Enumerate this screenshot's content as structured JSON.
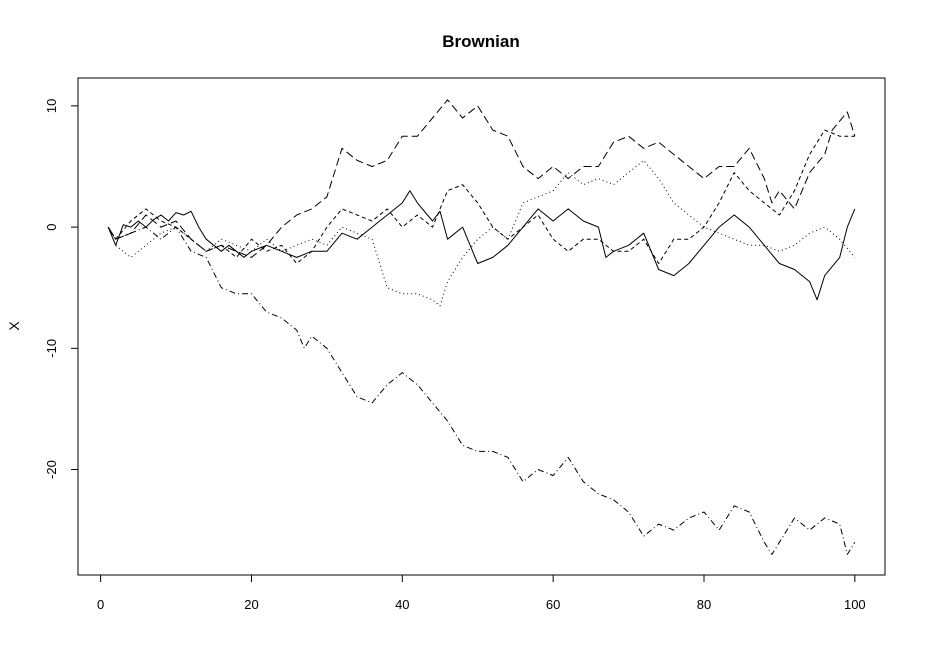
{
  "chart_data": {
    "type": "line",
    "title": "Brownian",
    "xlabel": "",
    "ylabel": "X",
    "xlim": [
      -3,
      104
    ],
    "ylim": [
      -28.7,
      12.3
    ],
    "xticks": [
      0,
      20,
      40,
      60,
      80,
      100
    ],
    "yticks": [
      10,
      0,
      -10,
      -20
    ],
    "grid": false,
    "legend": "none",
    "line_color": "#000000",
    "series": [
      {
        "style": "solid",
        "points": [
          [
            1,
            0
          ],
          [
            2,
            -1.5
          ],
          [
            3,
            0.2
          ],
          [
            4,
            0
          ],
          [
            5,
            0.5
          ],
          [
            6,
            0
          ],
          [
            7,
            0.6
          ],
          [
            8,
            1
          ],
          [
            9,
            0.5
          ],
          [
            10,
            1.2
          ],
          [
            11,
            1
          ],
          [
            12,
            1.3
          ],
          [
            13,
            0
          ],
          [
            14,
            -1
          ],
          [
            15,
            -1.5
          ],
          [
            16,
            -2
          ],
          [
            17,
            -1.5
          ],
          [
            18,
            -2
          ],
          [
            19,
            -2.5
          ],
          [
            20,
            -2
          ],
          [
            22,
            -1.5
          ],
          [
            24,
            -2
          ],
          [
            26,
            -2.5
          ],
          [
            28,
            -2
          ],
          [
            30,
            -2
          ],
          [
            32,
            -0.5
          ],
          [
            34,
            -1
          ],
          [
            36,
            0
          ],
          [
            38,
            1
          ],
          [
            40,
            2
          ],
          [
            41,
            3
          ],
          [
            42,
            2
          ],
          [
            44,
            0.5
          ],
          [
            45,
            1.3
          ],
          [
            46,
            -1
          ],
          [
            48,
            0
          ],
          [
            50,
            -3
          ],
          [
            52,
            -2.5
          ],
          [
            54,
            -1.5
          ],
          [
            56,
            0
          ],
          [
            58,
            1.5
          ],
          [
            60,
            0.5
          ],
          [
            62,
            1.5
          ],
          [
            64,
            0.5
          ],
          [
            66,
            0
          ],
          [
            67,
            -2.5
          ],
          [
            68,
            -2
          ],
          [
            70,
            -1.5
          ],
          [
            72,
            -0.5
          ],
          [
            74,
            -3.5
          ],
          [
            76,
            -4
          ],
          [
            78,
            -3
          ],
          [
            80,
            -1.5
          ],
          [
            82,
            0
          ],
          [
            84,
            1
          ],
          [
            86,
            0
          ],
          [
            88,
            -1.5
          ],
          [
            90,
            -3
          ],
          [
            92,
            -3.5
          ],
          [
            94,
            -4.5
          ],
          [
            95,
            -6
          ],
          [
            96,
            -4
          ],
          [
            98,
            -2.5
          ],
          [
            99,
            0
          ],
          [
            100,
            1.5
          ]
        ]
      },
      {
        "style": "dashed",
        "points": [
          [
            1,
            0
          ],
          [
            2,
            -1
          ],
          [
            4,
            0.5
          ],
          [
            6,
            1.5
          ],
          [
            8,
            0.5
          ],
          [
            10,
            0
          ],
          [
            12,
            -1
          ],
          [
            14,
            -2
          ],
          [
            16,
            -1.5
          ],
          [
            18,
            -2.5
          ],
          [
            20,
            -1
          ],
          [
            22,
            -2
          ],
          [
            24,
            -1.5
          ],
          [
            26,
            -3
          ],
          [
            28,
            -2
          ],
          [
            30,
            0
          ],
          [
            32,
            1.5
          ],
          [
            34,
            1
          ],
          [
            36,
            0.5
          ],
          [
            38,
            1.5
          ],
          [
            40,
            0
          ],
          [
            42,
            1
          ],
          [
            44,
            0
          ],
          [
            46,
            3
          ],
          [
            48,
            3.5
          ],
          [
            50,
            2
          ],
          [
            52,
            0
          ],
          [
            54,
            -1
          ],
          [
            56,
            0
          ],
          [
            58,
            1
          ],
          [
            60,
            -1
          ],
          [
            62,
            -2
          ],
          [
            64,
            -1
          ],
          [
            66,
            -1
          ],
          [
            68,
            -2
          ],
          [
            70,
            -2
          ],
          [
            72,
            -1
          ],
          [
            74,
            -3
          ],
          [
            76,
            -1
          ],
          [
            78,
            -1
          ],
          [
            80,
            0
          ],
          [
            82,
            2
          ],
          [
            84,
            4.5
          ],
          [
            86,
            3
          ],
          [
            88,
            2
          ],
          [
            90,
            1
          ],
          [
            92,
            3
          ],
          [
            94,
            6
          ],
          [
            96,
            8
          ],
          [
            98,
            7.5
          ],
          [
            100,
            7.5
          ]
        ]
      },
      {
        "style": "dotted",
        "points": [
          [
            1,
            0
          ],
          [
            2,
            -1.5
          ],
          [
            4,
            -2.5
          ],
          [
            6,
            -1.5
          ],
          [
            8,
            -0.5
          ],
          [
            10,
            0
          ],
          [
            12,
            -1
          ],
          [
            14,
            -2
          ],
          [
            16,
            -1
          ],
          [
            18,
            -1.5
          ],
          [
            20,
            -2
          ],
          [
            22,
            -1
          ],
          [
            24,
            -2
          ],
          [
            26,
            -1.5
          ],
          [
            28,
            -1
          ],
          [
            30,
            -1.5
          ],
          [
            32,
            0
          ],
          [
            34,
            -0.5
          ],
          [
            36,
            -1
          ],
          [
            37,
            -3
          ],
          [
            38,
            -5
          ],
          [
            40,
            -5.5
          ],
          [
            42,
            -5.5
          ],
          [
            44,
            -6
          ],
          [
            45,
            -6.5
          ],
          [
            46,
            -4.5
          ],
          [
            48,
            -2.5
          ],
          [
            50,
            -1
          ],
          [
            52,
            0
          ],
          [
            54,
            -1
          ],
          [
            56,
            2
          ],
          [
            58,
            2.5
          ],
          [
            60,
            3
          ],
          [
            62,
            4.5
          ],
          [
            64,
            3.5
          ],
          [
            66,
            4
          ],
          [
            68,
            3.5
          ],
          [
            70,
            4.5
          ],
          [
            72,
            5.5
          ],
          [
            74,
            4
          ],
          [
            76,
            2
          ],
          [
            78,
            1
          ],
          [
            80,
            0
          ],
          [
            82,
            -0.5
          ],
          [
            84,
            -1
          ],
          [
            86,
            -1.5
          ],
          [
            88,
            -1.5
          ],
          [
            90,
            -2
          ],
          [
            92,
            -1.5
          ],
          [
            94,
            -0.5
          ],
          [
            96,
            0
          ],
          [
            98,
            -1
          ],
          [
            100,
            -2.5
          ]
        ]
      },
      {
        "style": "longdash",
        "points": [
          [
            1,
            0
          ],
          [
            2,
            -1
          ],
          [
            4,
            -0.5
          ],
          [
            6,
            1
          ],
          [
            8,
            0
          ],
          [
            10,
            0.5
          ],
          [
            12,
            -1
          ],
          [
            14,
            -2
          ],
          [
            16,
            -1.5
          ],
          [
            18,
            -2
          ],
          [
            20,
            -2.5
          ],
          [
            22,
            -1.5
          ],
          [
            24,
            0
          ],
          [
            26,
            1
          ],
          [
            28,
            1.5
          ],
          [
            30,
            2.5
          ],
          [
            32,
            6.5
          ],
          [
            34,
            5.5
          ],
          [
            36,
            5
          ],
          [
            38,
            5.5
          ],
          [
            40,
            7.5
          ],
          [
            42,
            7.5
          ],
          [
            44,
            9
          ],
          [
            46,
            10.5
          ],
          [
            48,
            9
          ],
          [
            50,
            10
          ],
          [
            52,
            8
          ],
          [
            54,
            7.5
          ],
          [
            56,
            5
          ],
          [
            58,
            4
          ],
          [
            60,
            5
          ],
          [
            62,
            4
          ],
          [
            64,
            5
          ],
          [
            66,
            5
          ],
          [
            68,
            7
          ],
          [
            70,
            7.5
          ],
          [
            72,
            6.5
          ],
          [
            74,
            7
          ],
          [
            76,
            6
          ],
          [
            78,
            5
          ],
          [
            80,
            4
          ],
          [
            82,
            5
          ],
          [
            84,
            5
          ],
          [
            86,
            6.5
          ],
          [
            88,
            4
          ],
          [
            89,
            2
          ],
          [
            90,
            3
          ],
          [
            92,
            1.5
          ],
          [
            94,
            4.5
          ],
          [
            96,
            6
          ],
          [
            97,
            8
          ],
          [
            99,
            9.5
          ],
          [
            100,
            7.5
          ]
        ]
      },
      {
        "style": "dotdash",
        "points": [
          [
            1,
            0
          ],
          [
            2,
            -1
          ],
          [
            4,
            -0.5
          ],
          [
            6,
            0
          ],
          [
            8,
            -1
          ],
          [
            10,
            0
          ],
          [
            12,
            -2
          ],
          [
            14,
            -2.5
          ],
          [
            16,
            -5
          ],
          [
            18,
            -5.5
          ],
          [
            20,
            -5.5
          ],
          [
            22,
            -7
          ],
          [
            24,
            -7.5
          ],
          [
            26,
            -8.5
          ],
          [
            27,
            -10
          ],
          [
            28,
            -9
          ],
          [
            30,
            -10
          ],
          [
            32,
            -12
          ],
          [
            34,
            -14
          ],
          [
            36,
            -14.5
          ],
          [
            38,
            -13
          ],
          [
            40,
            -12
          ],
          [
            42,
            -13
          ],
          [
            44,
            -14.5
          ],
          [
            46,
            -16
          ],
          [
            48,
            -18
          ],
          [
            50,
            -18.5
          ],
          [
            52,
            -18.5
          ],
          [
            54,
            -19
          ],
          [
            56,
            -21
          ],
          [
            58,
            -20
          ],
          [
            60,
            -20.5
          ],
          [
            62,
            -19
          ],
          [
            64,
            -21
          ],
          [
            66,
            -22
          ],
          [
            68,
            -22.5
          ],
          [
            70,
            -23.5
          ],
          [
            72,
            -25.5
          ],
          [
            74,
            -24.5
          ],
          [
            76,
            -25
          ],
          [
            78,
            -24
          ],
          [
            80,
            -23.5
          ],
          [
            82,
            -25
          ],
          [
            84,
            -23
          ],
          [
            86,
            -23.5
          ],
          [
            88,
            -26
          ],
          [
            89,
            -27
          ],
          [
            90,
            -26
          ],
          [
            92,
            -24
          ],
          [
            94,
            -25
          ],
          [
            96,
            -24
          ],
          [
            98,
            -24.5
          ],
          [
            99,
            -27
          ],
          [
            100,
            -26
          ]
        ]
      }
    ]
  }
}
